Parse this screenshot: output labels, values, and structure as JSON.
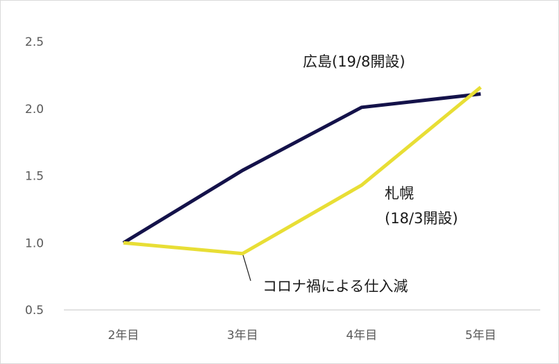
{
  "chart_data": {
    "type": "line",
    "categories": [
      "2年目",
      "3年目",
      "4年目",
      "5年目"
    ],
    "ylim": [
      0.5,
      2.5
    ],
    "yticks": [
      "0.5",
      "1.0",
      "1.5",
      "2.0",
      "2.5"
    ],
    "grid": false,
    "series": [
      {
        "name": "広島(19/8開設)",
        "color": "#14124a",
        "values": [
          1.0,
          1.54,
          2.01,
          2.11
        ]
      },
      {
        "name": "札幌 (18/3開設)",
        "color": "#e8de35",
        "values": [
          1.0,
          0.92,
          1.43,
          2.16
        ]
      }
    ],
    "annotations": {
      "hiroshima": "広島(19/8開設)",
      "sapporo_line1": "札幌",
      "sapporo_line2": "(18/3開設)",
      "covid_note": "コロナ禍による仕入減"
    }
  }
}
